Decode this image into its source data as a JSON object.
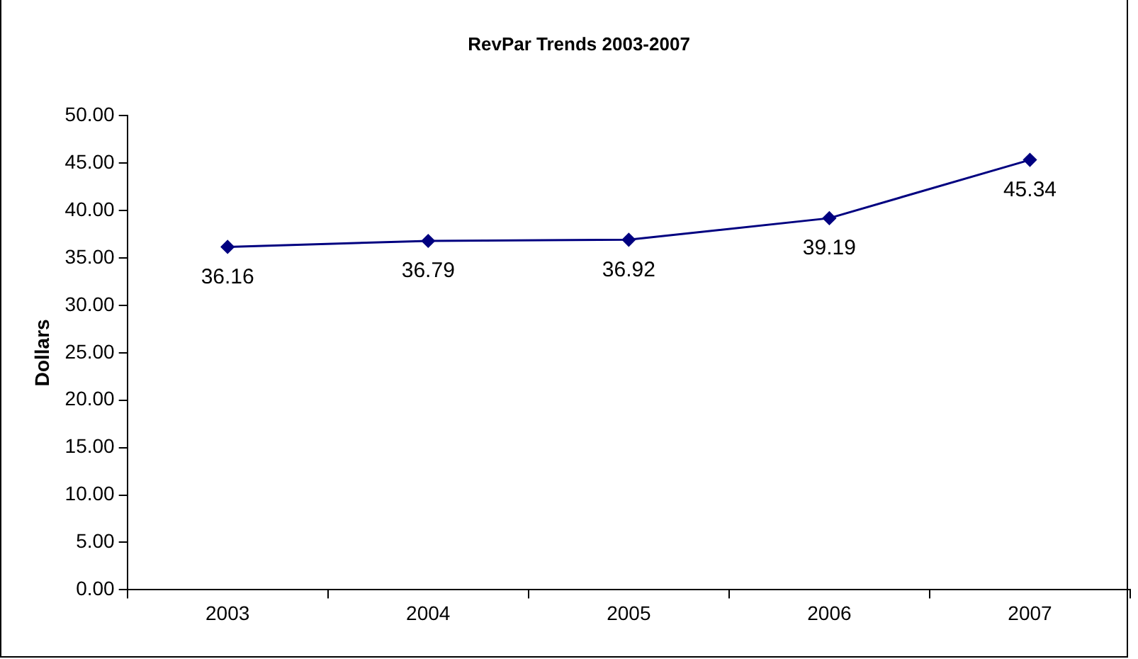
{
  "chart_data": {
    "type": "line",
    "title": "RevPar Trends 2003-2007",
    "ylabel": "Dollars",
    "categories": [
      "2003",
      "2004",
      "2005",
      "2006",
      "2007"
    ],
    "series": [
      {
        "color": "#000080",
        "values": [
          36.16,
          36.79,
          36.92,
          39.19,
          45.34
        ]
      }
    ],
    "ylim": [
      0,
      50
    ],
    "yticks": [
      {
        "value": 0,
        "label": "0.00"
      },
      {
        "value": 5,
        "label": "5.00"
      },
      {
        "value": 10,
        "label": "10.00"
      },
      {
        "value": 15,
        "label": "15.00"
      },
      {
        "value": 20,
        "label": "20.00"
      },
      {
        "value": 25,
        "label": "25.00"
      },
      {
        "value": 30,
        "label": "30.00"
      },
      {
        "value": 35,
        "label": "35.00"
      },
      {
        "value": 40,
        "label": "40.00"
      },
      {
        "value": 45,
        "label": "45.00"
      },
      {
        "value": 50,
        "label": "50.00"
      }
    ],
    "grid": false,
    "legend": false,
    "marker": "diamond",
    "line_style": "solid",
    "data_labels": true
  }
}
